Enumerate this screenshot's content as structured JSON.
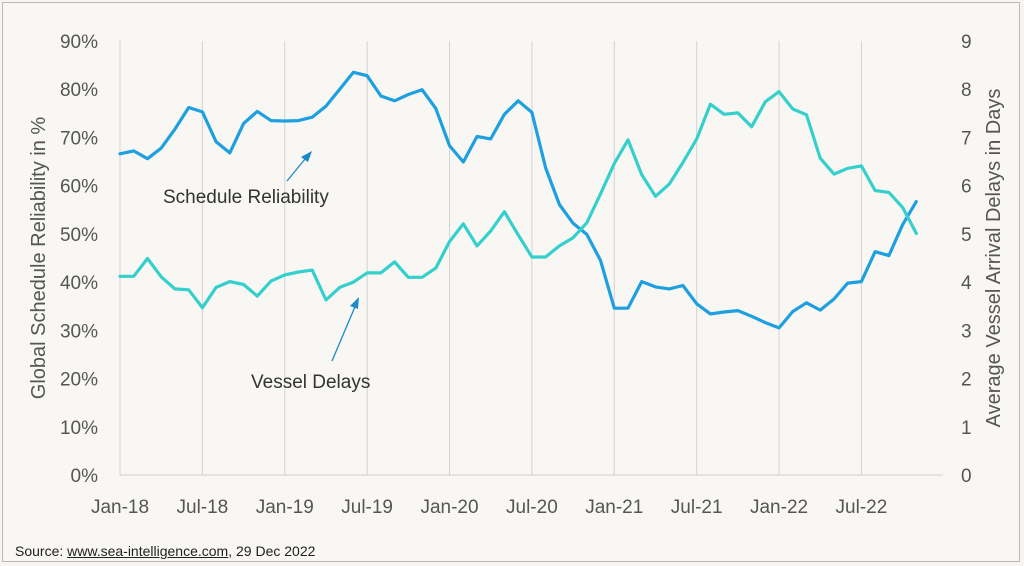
{
  "chart_data": {
    "type": "line",
    "x_labels": [
      "Jan-18",
      "Jul-18",
      "Jan-19",
      "Jul-19",
      "Jan-20",
      "Jul-20",
      "Jan-21",
      "Jul-21",
      "Jan-22",
      "Jul-22"
    ],
    "x_start": "2018-01",
    "ylim_left": [
      0,
      90
    ],
    "yticks_left": [
      "0%",
      "10%",
      "20%",
      "30%",
      "40%",
      "50%",
      "60%",
      "70%",
      "80%",
      "90%"
    ],
    "ylabel_left": "Global Schedule Reliability in %",
    "ylim_right": [
      0,
      9
    ],
    "yticks_right": [
      "0",
      "1",
      "2",
      "3",
      "4",
      "5",
      "6",
      "7",
      "8",
      "9"
    ],
    "ylabel_right": "Average Vessel Arrival Delays in Days",
    "grid": "vertical",
    "series": [
      {
        "name": "Schedule Reliability",
        "axis": "left",
        "color": "#1e9fe0",
        "values": [
          66.6,
          67.2,
          65.6,
          67.8,
          71.7,
          76.2,
          75.3,
          69.1,
          66.8,
          72.9,
          75.4,
          73.5,
          73.4,
          73.5,
          74.2,
          76.5,
          80.0,
          83.5,
          82.8,
          78.6,
          77.6,
          78.9,
          79.9,
          76.0,
          68.3,
          64.9,
          70.2,
          69.7,
          74.8,
          77.6,
          75.2,
          63.7,
          56.1,
          52.2,
          49.9,
          44.5,
          34.6,
          34.6,
          40.1,
          39.0,
          38.6,
          39.3,
          35.5,
          33.4,
          33.8,
          34.1,
          32.9,
          31.6,
          30.5,
          33.9,
          35.7,
          34.2,
          36.5,
          39.8,
          40.1,
          46.3,
          45.5,
          51.9,
          56.7
        ]
      },
      {
        "name": "Vessel Delays",
        "axis": "right",
        "color": "#35cfcc",
        "values": [
          4.12,
          4.12,
          4.49,
          4.11,
          3.86,
          3.84,
          3.47,
          3.89,
          4.01,
          3.95,
          3.71,
          4.02,
          4.15,
          4.21,
          4.25,
          3.63,
          3.89,
          4.0,
          4.19,
          4.19,
          4.42,
          4.1,
          4.1,
          4.29,
          4.84,
          5.21,
          4.75,
          5.06,
          5.46,
          4.98,
          4.52,
          4.52,
          4.75,
          4.92,
          5.23,
          5.83,
          6.46,
          6.95,
          6.23,
          5.78,
          6.03,
          6.48,
          6.97,
          7.69,
          7.48,
          7.51,
          7.22,
          7.74,
          7.95,
          7.59,
          7.47,
          6.57,
          6.24,
          6.36,
          6.41,
          5.9,
          5.86,
          5.55,
          5.01
        ]
      }
    ],
    "annotations": [
      {
        "text": "Schedule Reliability"
      },
      {
        "text": "Vessel Delays"
      }
    ]
  },
  "source": {
    "prefix": "Source: ",
    "link": "www.sea-intelligence.com",
    "suffix": ", 29 Dec 2022"
  }
}
